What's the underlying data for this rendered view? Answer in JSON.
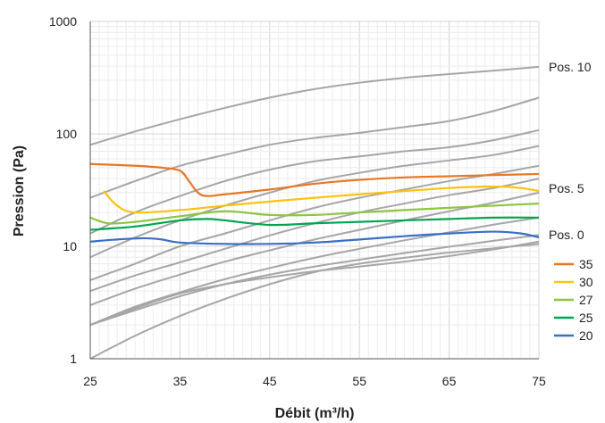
{
  "chart_data": {
    "type": "line",
    "xlabel": "Débit (m³/h)",
    "ylabel": "Pression (Pa)",
    "xlim": [
      25,
      75
    ],
    "ylim": [
      1,
      1000
    ],
    "yscale": "log",
    "grid": true,
    "x_ticks": [
      "25",
      "35",
      "45",
      "55",
      "65",
      "75"
    ],
    "y_ticks": [
      "1",
      "10",
      "100",
      "1000"
    ],
    "curve_labels": [
      "Pos. 10",
      "Pos. 5",
      "Pos. 0"
    ],
    "legend_position": "right",
    "reference_color": "#a6a6a6",
    "reference_curves": [
      {
        "x": [
          25,
          30,
          35,
          40,
          45,
          50,
          55,
          60,
          65,
          70,
          75
        ],
        "y": [
          80,
          105,
          135,
          170,
          210,
          250,
          285,
          315,
          340,
          365,
          395
        ]
      },
      {
        "x": [
          25,
          30,
          35,
          40,
          45,
          50,
          55,
          60,
          65,
          70,
          75
        ],
        "y": [
          27,
          38,
          52,
          65,
          80,
          92,
          102,
          115,
          130,
          160,
          210
        ]
      },
      {
        "x": [
          25,
          30,
          35,
          40,
          45,
          50,
          55,
          60,
          65,
          70,
          75
        ],
        "y": [
          13,
          20,
          28,
          38,
          48,
          57,
          63,
          70,
          76,
          88,
          108
        ]
      },
      {
        "x": [
          25,
          30,
          35,
          40,
          45,
          50,
          55,
          60,
          65,
          70,
          75
        ],
        "y": [
          8,
          12,
          17,
          23,
          30,
          38,
          45,
          52,
          58,
          65,
          78
        ]
      },
      {
        "x": [
          25,
          30,
          35,
          40,
          45,
          50,
          55,
          60,
          65,
          70,
          75
        ],
        "y": [
          5,
          7,
          10,
          13,
          17,
          22,
          27,
          32,
          38,
          44,
          52
        ]
      },
      {
        "x": [
          25,
          30,
          35,
          40,
          45,
          50,
          55,
          60,
          65,
          70,
          75
        ],
        "y": [
          4,
          5.5,
          7.2,
          9.5,
          12.5,
          16,
          20,
          24,
          28.5,
          33,
          40
        ]
      },
      {
        "x": [
          25,
          30,
          35,
          40,
          45,
          50,
          55,
          60,
          65,
          70,
          75
        ],
        "y": [
          3,
          4.2,
          5.6,
          7.3,
          9.2,
          11.5,
          14,
          17,
          20.5,
          24.5,
          30
        ]
      },
      {
        "x": [
          25,
          30,
          35,
          40,
          45,
          50,
          55,
          60,
          65,
          70,
          75
        ],
        "y": [
          2,
          2.9,
          3.9,
          5.1,
          6.4,
          7.9,
          9.5,
          11.3,
          13.3,
          15.6,
          18
        ]
      },
      {
        "x": [
          25,
          30,
          35,
          40,
          45,
          50,
          55,
          60,
          65,
          70,
          75
        ],
        "y": [
          2,
          2.7,
          3.6,
          4.6,
          5.6,
          6.6,
          7.6,
          8.7,
          9.9,
          11.2,
          12.6
        ]
      },
      {
        "x": [
          25,
          30,
          35,
          40,
          45,
          50,
          55,
          60,
          65,
          70,
          75
        ],
        "y": [
          1,
          1.6,
          2.4,
          3.4,
          4.6,
          5.9,
          7,
          7.9,
          8.8,
          9.6,
          10.5
        ]
      },
      {
        "x": [
          25,
          30,
          35,
          40,
          45,
          50,
          55,
          60,
          65,
          70,
          75
        ],
        "y": [
          2,
          2.8,
          3.8,
          4.6,
          5.3,
          6,
          6.6,
          7.3,
          8.2,
          9.4,
          11
        ]
      }
    ],
    "series": [
      {
        "name": "35",
        "color": "#e87722",
        "x": [
          25,
          30,
          33,
          35,
          36,
          37,
          38,
          40,
          45,
          50,
          55,
          60,
          65,
          70,
          75
        ],
        "y": [
          54,
          52,
          50,
          47,
          38,
          30,
          28,
          29,
          32,
          36,
          39,
          41,
          42,
          43,
          44
        ]
      },
      {
        "name": "30",
        "color": "#ffc20e",
        "x": [
          26.5,
          28,
          30,
          35,
          40,
          45,
          50,
          55,
          60,
          65,
          70,
          73,
          75
        ],
        "y": [
          31,
          23,
          20,
          21,
          23,
          25,
          27,
          29,
          31,
          33,
          34,
          33,
          31
        ]
      },
      {
        "name": "27",
        "color": "#8dc63f",
        "x": [
          25,
          27,
          30,
          35,
          40,
          45,
          50,
          55,
          60,
          65,
          70,
          75
        ],
        "y": [
          18,
          16,
          16.5,
          18.5,
          20.5,
          19,
          19,
          20,
          21,
          22,
          23,
          24
        ]
      },
      {
        "name": "25",
        "color": "#00a651",
        "x": [
          25,
          30,
          35,
          38,
          40,
          45,
          50,
          55,
          60,
          65,
          70,
          75
        ],
        "y": [
          14,
          15,
          17,
          17.5,
          17,
          15.5,
          16,
          16.5,
          17,
          17.5,
          18,
          18
        ]
      },
      {
        "name": "20",
        "color": "#3a6fc4",
        "x": [
          25,
          28,
          31,
          33,
          35,
          40,
          45,
          50,
          55,
          60,
          65,
          70,
          73,
          75
        ],
        "y": [
          11,
          11.5,
          11.8,
          11.5,
          10.8,
          10.5,
          10.5,
          10.8,
          11.5,
          12.3,
          13,
          13.5,
          13,
          12
        ]
      }
    ]
  }
}
